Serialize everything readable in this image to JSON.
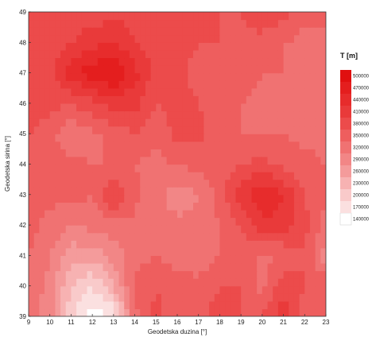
{
  "chart_data": {
    "type": "heatmap",
    "title": "",
    "xlabel": "Geodetska duzina [°]",
    "ylabel": "Geodetska sirina [°]",
    "xlim": [
      9,
      23
    ],
    "ylim": [
      39,
      49
    ],
    "x_ticks": [
      "9",
      "10",
      "11",
      "12",
      "13",
      "14",
      "15",
      "16",
      "17",
      "18",
      "19",
      "20",
      "21",
      "22",
      "23"
    ],
    "y_ticks": [
      "39",
      "40",
      "41",
      "42",
      "43",
      "44",
      "45",
      "46",
      "47",
      "48",
      "49"
    ],
    "colorbar": {
      "title": "T [m]",
      "levels": [
        "140000",
        "170000",
        "200000",
        "230000",
        "260000",
        "290000",
        "320000",
        "350000",
        "380000",
        "410000",
        "440000",
        "470000",
        "500000"
      ],
      "colors": [
        "#ffffff",
        "#fbe0e0",
        "#f9caca",
        "#f7b2b2",
        "#f49b9b",
        "#f28686",
        "#f07272",
        "#ee5e5e",
        "#ec4b4b",
        "#e93a3a",
        "#e72c2c",
        "#e41e1e",
        "#e01010"
      ]
    },
    "x": [
      9,
      10,
      11,
      12,
      13,
      14,
      15,
      16,
      17,
      18,
      19,
      20,
      21,
      22,
      23
    ],
    "y": [
      39,
      40,
      41,
      42,
      43,
      44,
      45,
      46,
      47,
      48,
      49
    ],
    "z": [
      [
        330000,
        300000,
        210000,
        150000,
        170000,
        340000,
        390000,
        360000,
        370000,
        400000,
        380000,
        380000,
        430000,
        360000,
        380000
      ],
      [
        340000,
        310000,
        230000,
        200000,
        260000,
        360000,
        380000,
        360000,
        360000,
        380000,
        380000,
        340000,
        400000,
        380000,
        380000
      ],
      [
        350000,
        320000,
        270000,
        270000,
        300000,
        340000,
        350000,
        340000,
        330000,
        350000,
        370000,
        340000,
        350000,
        380000,
        300000
      ],
      [
        360000,
        340000,
        320000,
        330000,
        340000,
        340000,
        330000,
        330000,
        330000,
        350000,
        380000,
        430000,
        430000,
        390000,
        340000
      ],
      [
        370000,
        360000,
        360000,
        350000,
        420000,
        360000,
        330000,
        300000,
        320000,
        360000,
        430000,
        470000,
        440000,
        380000,
        350000
      ],
      [
        370000,
        360000,
        360000,
        350000,
        350000,
        350000,
        340000,
        350000,
        360000,
        370000,
        380000,
        390000,
        370000,
        360000,
        350000
      ],
      [
        380000,
        360000,
        320000,
        340000,
        360000,
        380000,
        360000,
        390000,
        390000,
        360000,
        350000,
        350000,
        350000,
        340000,
        340000
      ],
      [
        400000,
        390000,
        380000,
        400000,
        420000,
        420000,
        380000,
        390000,
        380000,
        350000,
        350000,
        340000,
        340000,
        340000,
        340000
      ],
      [
        390000,
        400000,
        460000,
        490000,
        510000,
        450000,
        400000,
        390000,
        370000,
        360000,
        360000,
        350000,
        350000,
        350000,
        350000
      ],
      [
        380000,
        390000,
        410000,
        430000,
        440000,
        410000,
        400000,
        390000,
        380000,
        380000,
        370000,
        370000,
        350000,
        340000,
        350000
      ],
      [
        380000,
        380000,
        390000,
        390000,
        400000,
        400000,
        400000,
        390000,
        390000,
        380000,
        380000,
        400000,
        390000,
        360000,
        350000
      ]
    ]
  }
}
